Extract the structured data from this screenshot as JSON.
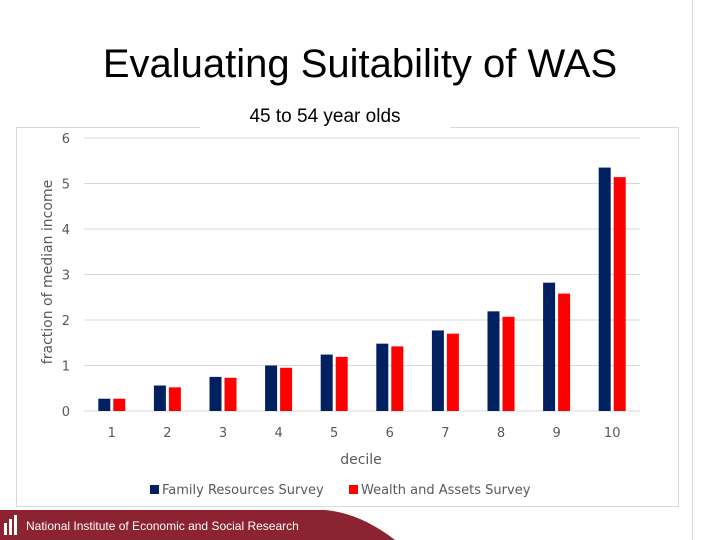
{
  "slide": {
    "title": "Evaluating Suitability of WAS",
    "footer": "National Institute of Economic and Social Research"
  },
  "colors": {
    "series1": "#002060",
    "series2": "#ff0000",
    "grid": "#d9d9d9",
    "tick": "#595959",
    "footer": "#8b2332"
  },
  "chart_data": {
    "type": "bar",
    "title": "45 to 54 year olds",
    "xlabel": "decile",
    "ylabel": "fraction of median income",
    "categories": [
      "1",
      "2",
      "3",
      "4",
      "5",
      "6",
      "7",
      "8",
      "9",
      "10"
    ],
    "ylim": [
      0,
      6
    ],
    "yticks": [
      "0",
      "1",
      "2",
      "3",
      "4",
      "5",
      "6"
    ],
    "grid": true,
    "legend": "bottom",
    "series": [
      {
        "name": "Family Resources Survey",
        "values": [
          0.27,
          0.56,
          0.75,
          1.0,
          1.24,
          1.48,
          1.77,
          2.19,
          2.82,
          5.35
        ]
      },
      {
        "name": "Wealth and Assets Survey",
        "values": [
          0.27,
          0.52,
          0.73,
          0.95,
          1.19,
          1.42,
          1.7,
          2.07,
          2.58,
          5.14
        ]
      }
    ]
  }
}
